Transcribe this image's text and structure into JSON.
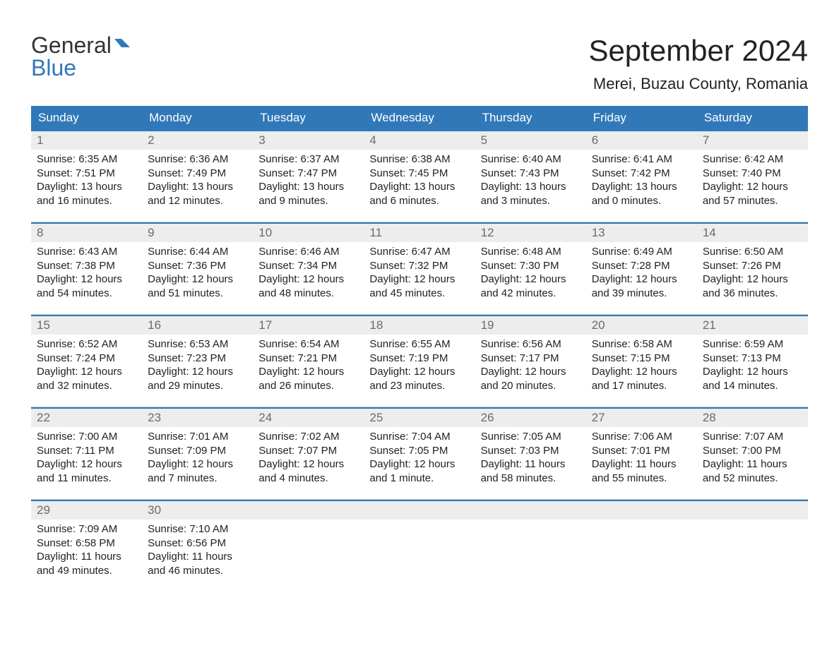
{
  "logo": {
    "general": "General",
    "blue": "Blue"
  },
  "title": "September 2024",
  "location": "Merei, Buzau County, Romania",
  "colors": {
    "header_bg": "#3178b9",
    "header_text": "#ffffff",
    "daynum_bg": "#ededed",
    "daynum_text": "#6b6b6b",
    "body_text": "#222222",
    "border": "#3178b9"
  },
  "calendar": {
    "type": "table",
    "dow": [
      "Sunday",
      "Monday",
      "Tuesday",
      "Wednesday",
      "Thursday",
      "Friday",
      "Saturday"
    ],
    "weeks": [
      [
        {
          "n": "1",
          "sr": "Sunrise: 6:35 AM",
          "ss": "Sunset: 7:51 PM",
          "d1": "Daylight: 13 hours",
          "d2": "and 16 minutes."
        },
        {
          "n": "2",
          "sr": "Sunrise: 6:36 AM",
          "ss": "Sunset: 7:49 PM",
          "d1": "Daylight: 13 hours",
          "d2": "and 12 minutes."
        },
        {
          "n": "3",
          "sr": "Sunrise: 6:37 AM",
          "ss": "Sunset: 7:47 PM",
          "d1": "Daylight: 13 hours",
          "d2": "and 9 minutes."
        },
        {
          "n": "4",
          "sr": "Sunrise: 6:38 AM",
          "ss": "Sunset: 7:45 PM",
          "d1": "Daylight: 13 hours",
          "d2": "and 6 minutes."
        },
        {
          "n": "5",
          "sr": "Sunrise: 6:40 AM",
          "ss": "Sunset: 7:43 PM",
          "d1": "Daylight: 13 hours",
          "d2": "and 3 minutes."
        },
        {
          "n": "6",
          "sr": "Sunrise: 6:41 AM",
          "ss": "Sunset: 7:42 PM",
          "d1": "Daylight: 13 hours",
          "d2": "and 0 minutes."
        },
        {
          "n": "7",
          "sr": "Sunrise: 6:42 AM",
          "ss": "Sunset: 7:40 PM",
          "d1": "Daylight: 12 hours",
          "d2": "and 57 minutes."
        }
      ],
      [
        {
          "n": "8",
          "sr": "Sunrise: 6:43 AM",
          "ss": "Sunset: 7:38 PM",
          "d1": "Daylight: 12 hours",
          "d2": "and 54 minutes."
        },
        {
          "n": "9",
          "sr": "Sunrise: 6:44 AM",
          "ss": "Sunset: 7:36 PM",
          "d1": "Daylight: 12 hours",
          "d2": "and 51 minutes."
        },
        {
          "n": "10",
          "sr": "Sunrise: 6:46 AM",
          "ss": "Sunset: 7:34 PM",
          "d1": "Daylight: 12 hours",
          "d2": "and 48 minutes."
        },
        {
          "n": "11",
          "sr": "Sunrise: 6:47 AM",
          "ss": "Sunset: 7:32 PM",
          "d1": "Daylight: 12 hours",
          "d2": "and 45 minutes."
        },
        {
          "n": "12",
          "sr": "Sunrise: 6:48 AM",
          "ss": "Sunset: 7:30 PM",
          "d1": "Daylight: 12 hours",
          "d2": "and 42 minutes."
        },
        {
          "n": "13",
          "sr": "Sunrise: 6:49 AM",
          "ss": "Sunset: 7:28 PM",
          "d1": "Daylight: 12 hours",
          "d2": "and 39 minutes."
        },
        {
          "n": "14",
          "sr": "Sunrise: 6:50 AM",
          "ss": "Sunset: 7:26 PM",
          "d1": "Daylight: 12 hours",
          "d2": "and 36 minutes."
        }
      ],
      [
        {
          "n": "15",
          "sr": "Sunrise: 6:52 AM",
          "ss": "Sunset: 7:24 PM",
          "d1": "Daylight: 12 hours",
          "d2": "and 32 minutes."
        },
        {
          "n": "16",
          "sr": "Sunrise: 6:53 AM",
          "ss": "Sunset: 7:23 PM",
          "d1": "Daylight: 12 hours",
          "d2": "and 29 minutes."
        },
        {
          "n": "17",
          "sr": "Sunrise: 6:54 AM",
          "ss": "Sunset: 7:21 PM",
          "d1": "Daylight: 12 hours",
          "d2": "and 26 minutes."
        },
        {
          "n": "18",
          "sr": "Sunrise: 6:55 AM",
          "ss": "Sunset: 7:19 PM",
          "d1": "Daylight: 12 hours",
          "d2": "and 23 minutes."
        },
        {
          "n": "19",
          "sr": "Sunrise: 6:56 AM",
          "ss": "Sunset: 7:17 PM",
          "d1": "Daylight: 12 hours",
          "d2": "and 20 minutes."
        },
        {
          "n": "20",
          "sr": "Sunrise: 6:58 AM",
          "ss": "Sunset: 7:15 PM",
          "d1": "Daylight: 12 hours",
          "d2": "and 17 minutes."
        },
        {
          "n": "21",
          "sr": "Sunrise: 6:59 AM",
          "ss": "Sunset: 7:13 PM",
          "d1": "Daylight: 12 hours",
          "d2": "and 14 minutes."
        }
      ],
      [
        {
          "n": "22",
          "sr": "Sunrise: 7:00 AM",
          "ss": "Sunset: 7:11 PM",
          "d1": "Daylight: 12 hours",
          "d2": "and 11 minutes."
        },
        {
          "n": "23",
          "sr": "Sunrise: 7:01 AM",
          "ss": "Sunset: 7:09 PM",
          "d1": "Daylight: 12 hours",
          "d2": "and 7 minutes."
        },
        {
          "n": "24",
          "sr": "Sunrise: 7:02 AM",
          "ss": "Sunset: 7:07 PM",
          "d1": "Daylight: 12 hours",
          "d2": "and 4 minutes."
        },
        {
          "n": "25",
          "sr": "Sunrise: 7:04 AM",
          "ss": "Sunset: 7:05 PM",
          "d1": "Daylight: 12 hours",
          "d2": "and 1 minute."
        },
        {
          "n": "26",
          "sr": "Sunrise: 7:05 AM",
          "ss": "Sunset: 7:03 PM",
          "d1": "Daylight: 11 hours",
          "d2": "and 58 minutes."
        },
        {
          "n": "27",
          "sr": "Sunrise: 7:06 AM",
          "ss": "Sunset: 7:01 PM",
          "d1": "Daylight: 11 hours",
          "d2": "and 55 minutes."
        },
        {
          "n": "28",
          "sr": "Sunrise: 7:07 AM",
          "ss": "Sunset: 7:00 PM",
          "d1": "Daylight: 11 hours",
          "d2": "and 52 minutes."
        }
      ],
      [
        {
          "n": "29",
          "sr": "Sunrise: 7:09 AM",
          "ss": "Sunset: 6:58 PM",
          "d1": "Daylight: 11 hours",
          "d2": "and 49 minutes."
        },
        {
          "n": "30",
          "sr": "Sunrise: 7:10 AM",
          "ss": "Sunset: 6:56 PM",
          "d1": "Daylight: 11 hours",
          "d2": "and 46 minutes."
        },
        null,
        null,
        null,
        null,
        null
      ]
    ]
  }
}
